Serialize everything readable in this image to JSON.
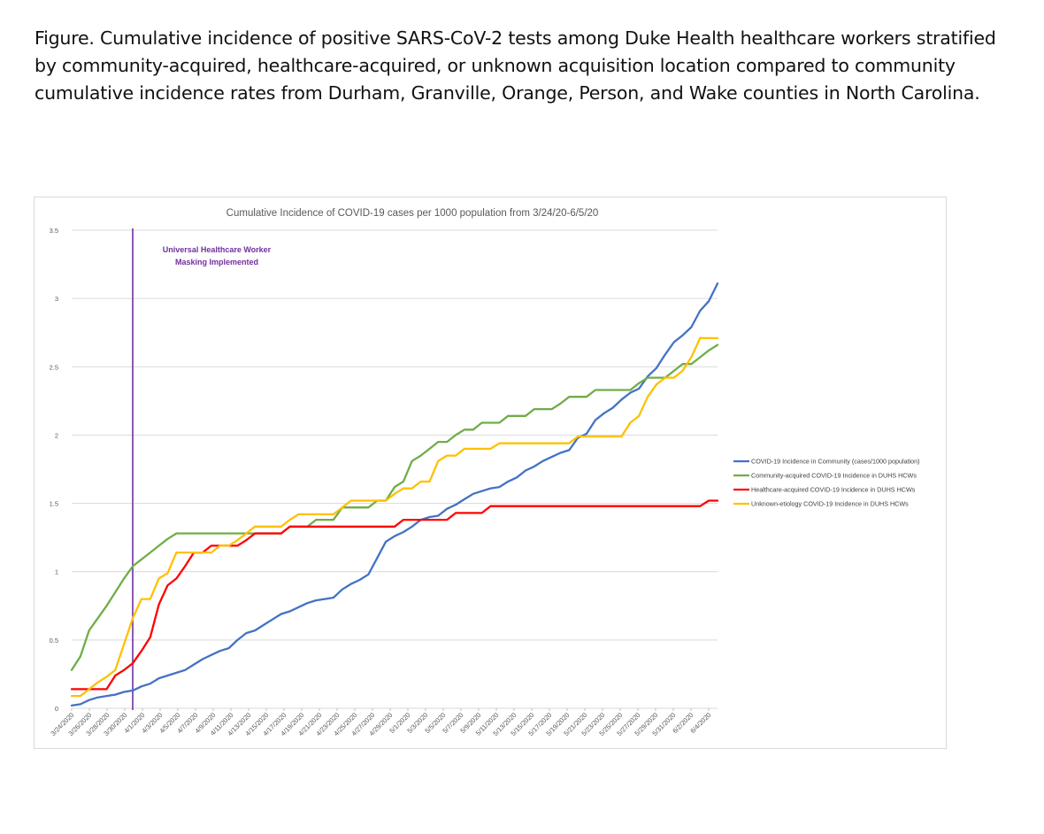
{
  "caption": "Figure. Cumulative incidence of positive SARS-CoV-2 tests among Duke Health healthcare workers stratified by community-acquired, healthcare-acquired, or unknown acquisition location compared to community cumulative incidence rates from Durham, Granville, Orange, Person, and Wake counties in North Carolina.",
  "chart_data": {
    "type": "line",
    "title": "Cumulative Incidence of COVID-19 cases per 1000 population from 3/24/20-6/5/20",
    "xlabel": "",
    "ylabel": "",
    "ylim": [
      0,
      3.5
    ],
    "yticks": [
      "0",
      "0.5",
      "1",
      "1.5",
      "2",
      "2.5",
      "3",
      "3.5"
    ],
    "xticks": [
      "3/24/2020",
      "3/26/2020",
      "3/28/2020",
      "3/30/2020",
      "4/1/2020",
      "4/3/2020",
      "4/5/2020",
      "4/7/2020",
      "4/9/2020",
      "4/11/2020",
      "4/13/2020",
      "4/15/2020",
      "4/17/2020",
      "4/19/2020",
      "4/21/2020",
      "4/23/2020",
      "4/25/2020",
      "4/27/2020",
      "4/29/2020",
      "5/1/2020",
      "5/3/2020",
      "5/5/2020",
      "5/7/2020",
      "5/9/2020",
      "5/11/2020",
      "5/13/2020",
      "5/15/2020",
      "5/17/2020",
      "5/19/2020",
      "5/21/2020",
      "5/23/2020",
      "5/25/2020",
      "5/27/2020",
      "5/29/2020",
      "5/31/2020",
      "6/2/2020",
      "6/4/2020"
    ],
    "x_start": "3/24/2020",
    "x_end": "6/5/2020",
    "gridlines": true,
    "legend_position": "right",
    "annotation": {
      "date": "3/31/2020",
      "line1": "Universal Healthcare Worker",
      "line2": "Masking Implemented",
      "color": "#7030a0"
    },
    "series": [
      {
        "name": "COVID-19 Incidence in Community (cases/1000 population)",
        "color": "#4472c4",
        "values": [
          0.02,
          0.03,
          0.06,
          0.08,
          0.09,
          0.1,
          0.12,
          0.13,
          0.16,
          0.18,
          0.22,
          0.24,
          0.26,
          0.28,
          0.32,
          0.36,
          0.39,
          0.42,
          0.44,
          0.5,
          0.55,
          0.57,
          0.61,
          0.65,
          0.69,
          0.71,
          0.74,
          0.77,
          0.79,
          0.8,
          0.81,
          0.87,
          0.91,
          0.94,
          0.98,
          1.1,
          1.22,
          1.26,
          1.29,
          1.33,
          1.38,
          1.4,
          1.41,
          1.46,
          1.49,
          1.53,
          1.57,
          1.59,
          1.61,
          1.62,
          1.66,
          1.69,
          1.74,
          1.77,
          1.81,
          1.84,
          1.87,
          1.89,
          1.98,
          2.01,
          2.11,
          2.16,
          2.2,
          2.26,
          2.31,
          2.34,
          2.43,
          2.49,
          2.59,
          2.68,
          2.73,
          2.79,
          2.91,
          2.98,
          3.11
        ]
      },
      {
        "name": "Community-acquired COVID-19 Incidence in DUHS HCWs",
        "color": "#70ad47",
        "values": [
          0.28,
          0.38,
          0.57,
          0.66,
          0.75,
          0.85,
          0.95,
          1.04,
          1.09,
          1.14,
          1.19,
          1.24,
          1.28,
          1.28,
          1.28,
          1.28,
          1.28,
          1.28,
          1.28,
          1.28,
          1.28,
          1.28,
          1.28,
          1.28,
          1.28,
          1.33,
          1.33,
          1.33,
          1.38,
          1.38,
          1.38,
          1.47,
          1.47,
          1.47,
          1.47,
          1.52,
          1.52,
          1.62,
          1.66,
          1.81,
          1.85,
          1.9,
          1.95,
          1.95,
          2.0,
          2.04,
          2.04,
          2.09,
          2.09,
          2.09,
          2.14,
          2.14,
          2.14,
          2.19,
          2.19,
          2.19,
          2.23,
          2.28,
          2.28,
          2.28,
          2.33,
          2.33,
          2.33,
          2.33,
          2.33,
          2.38,
          2.42,
          2.42,
          2.42,
          2.47,
          2.52,
          2.52,
          2.57,
          2.62,
          2.66
        ]
      },
      {
        "name": "Healthcare-acquired COVID-19 Incidence in DUHS HCWs",
        "color": "#ff0000",
        "values": [
          0.14,
          0.14,
          0.14,
          0.14,
          0.14,
          0.24,
          0.28,
          0.33,
          0.42,
          0.52,
          0.76,
          0.9,
          0.95,
          1.04,
          1.14,
          1.14,
          1.19,
          1.19,
          1.19,
          1.19,
          1.23,
          1.28,
          1.28,
          1.28,
          1.28,
          1.33,
          1.33,
          1.33,
          1.33,
          1.33,
          1.33,
          1.33,
          1.33,
          1.33,
          1.33,
          1.33,
          1.33,
          1.33,
          1.38,
          1.38,
          1.38,
          1.38,
          1.38,
          1.38,
          1.43,
          1.43,
          1.43,
          1.43,
          1.48,
          1.48,
          1.48,
          1.48,
          1.48,
          1.48,
          1.48,
          1.48,
          1.48,
          1.48,
          1.48,
          1.48,
          1.48,
          1.48,
          1.48,
          1.48,
          1.48,
          1.48,
          1.48,
          1.48,
          1.48,
          1.48,
          1.48,
          1.48,
          1.48,
          1.52,
          1.52
        ]
      },
      {
        "name": "Unknown-etiology COVID-19 Incidence in DUHS HCWs",
        "color": "#ffc000",
        "values": [
          0.09,
          0.09,
          0.14,
          0.19,
          0.23,
          0.28,
          0.47,
          0.66,
          0.8,
          0.8,
          0.95,
          0.99,
          1.14,
          1.14,
          1.14,
          1.14,
          1.14,
          1.19,
          1.19,
          1.23,
          1.28,
          1.33,
          1.33,
          1.33,
          1.33,
          1.38,
          1.42,
          1.42,
          1.42,
          1.42,
          1.42,
          1.47,
          1.52,
          1.52,
          1.52,
          1.52,
          1.52,
          1.57,
          1.61,
          1.61,
          1.66,
          1.66,
          1.81,
          1.85,
          1.85,
          1.9,
          1.9,
          1.9,
          1.9,
          1.94,
          1.94,
          1.94,
          1.94,
          1.94,
          1.94,
          1.94,
          1.94,
          1.94,
          1.99,
          1.99,
          1.99,
          1.99,
          1.99,
          1.99,
          2.09,
          2.14,
          2.28,
          2.37,
          2.42,
          2.42,
          2.47,
          2.57,
          2.71,
          2.71,
          2.71
        ]
      }
    ]
  }
}
